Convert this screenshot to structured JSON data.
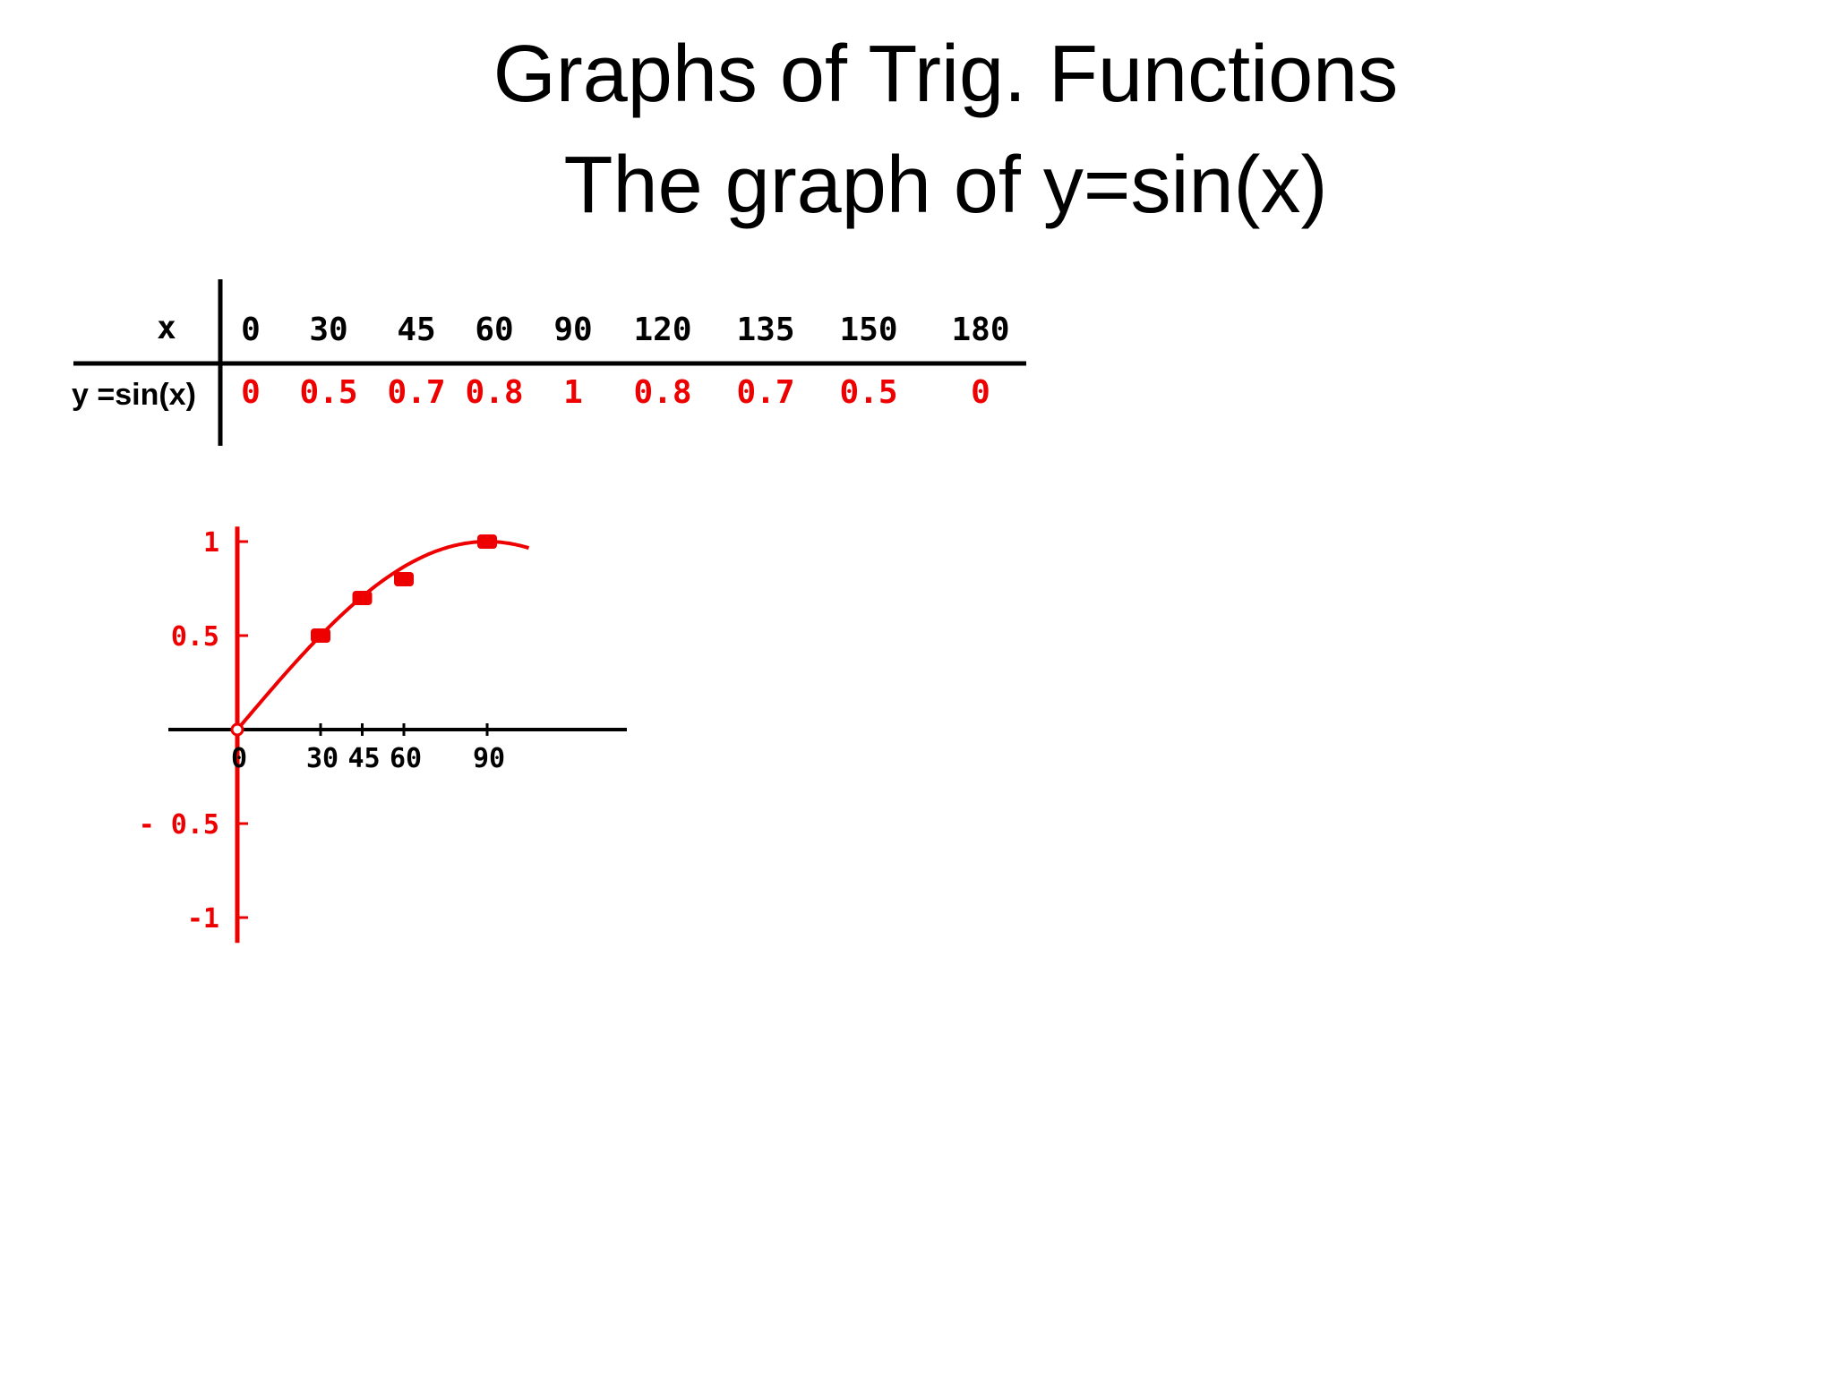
{
  "title": "Graphs of Trig. Functions",
  "subtitle": "The graph of y=sin(x)",
  "table": {
    "x_header": "x",
    "y_header": "y =sin(x)",
    "x_values": [
      "0",
      "30",
      "45",
      "60",
      "90",
      "120",
      "135",
      "150",
      "180"
    ],
    "y_values": [
      "0",
      "0.5",
      "0.7",
      "0.8",
      "1",
      "0.8",
      "0.7",
      "0.5",
      "0"
    ]
  },
  "colors": {
    "accent": "#ee0000",
    "text": "#000000"
  },
  "chart_data": {
    "type": "line",
    "x": [
      0,
      30,
      45,
      60,
      90
    ],
    "series": [
      {
        "values": [
          0,
          0.5,
          0.7,
          0.8,
          1
        ]
      }
    ],
    "xticks": [
      "0",
      "30",
      "45",
      "60",
      "90"
    ],
    "yticks": [
      "1",
      "0.5",
      "- 0.5",
      "-1"
    ],
    "ytick_values": [
      1,
      0.5,
      -0.5,
      -1
    ],
    "ylim": [
      -1,
      1
    ],
    "grid": false
  }
}
